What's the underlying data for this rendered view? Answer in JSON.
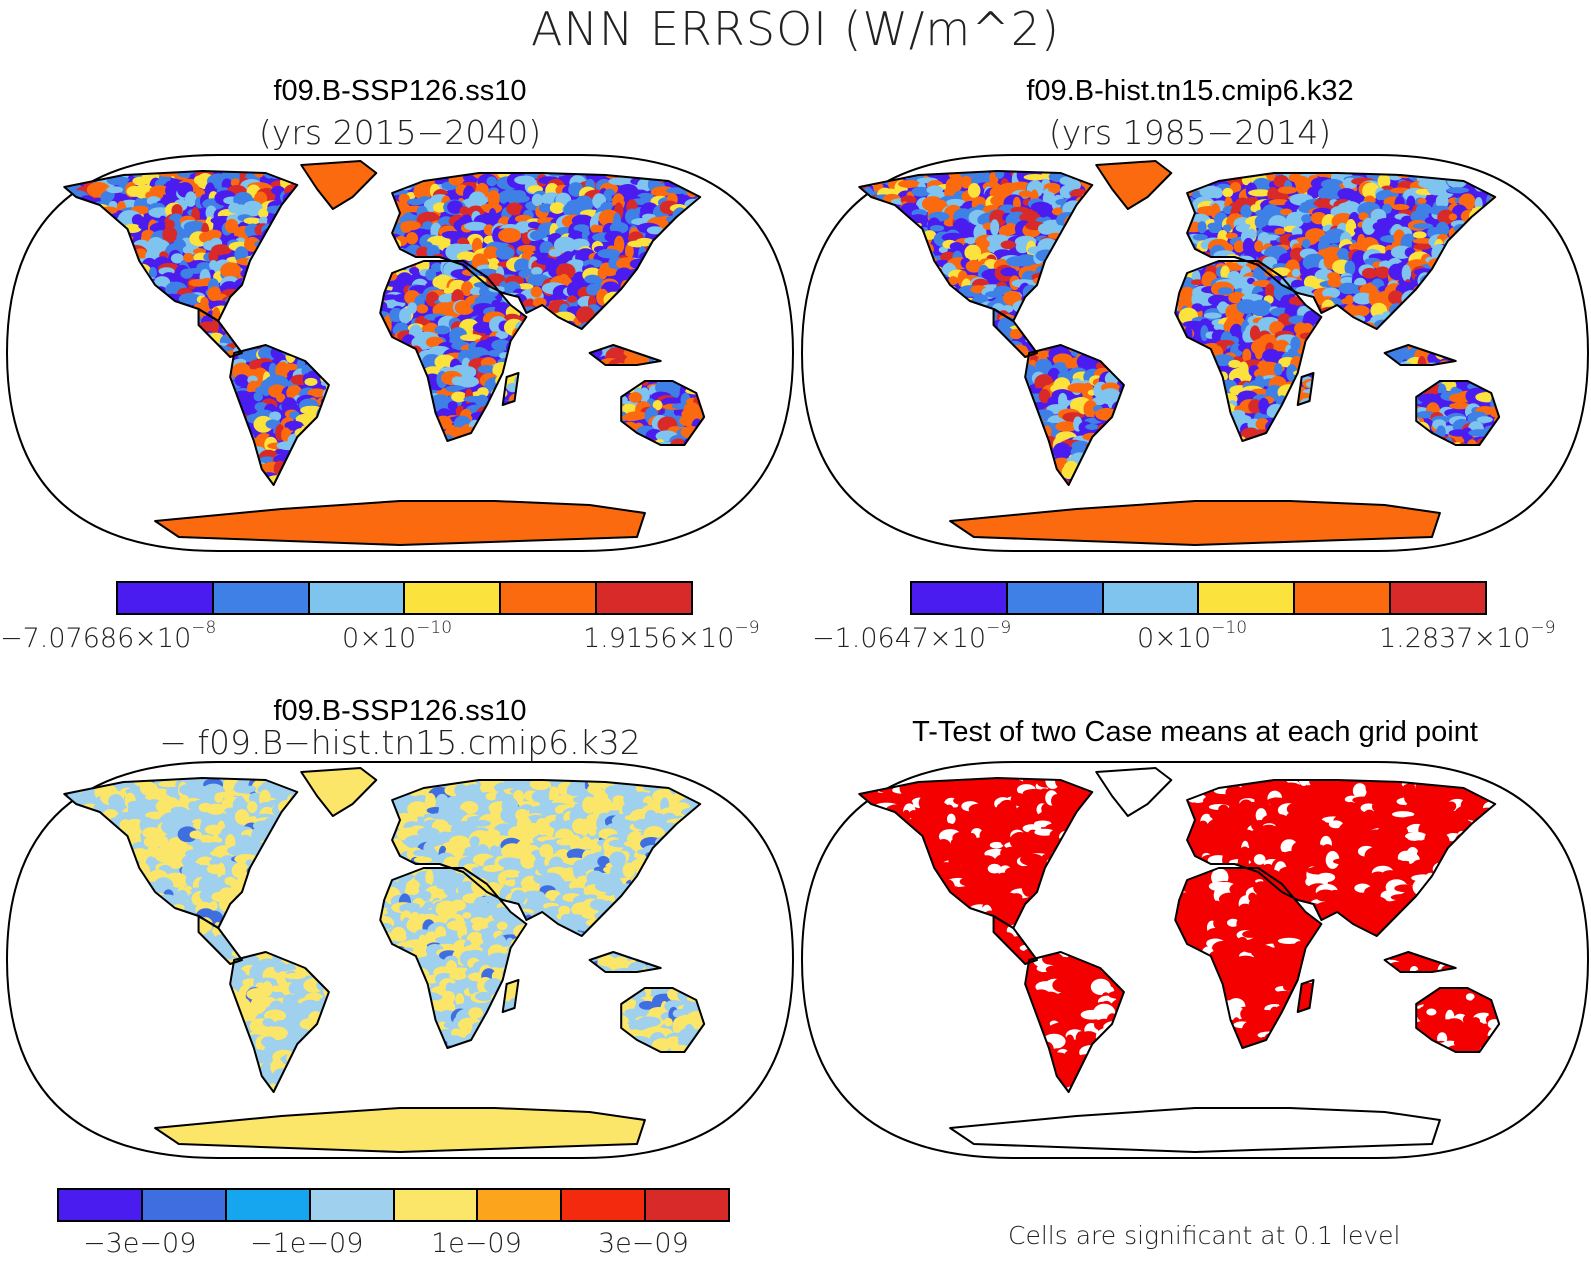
{
  "title": "ANN ERRSOI (W/m^2)",
  "panels": {
    "top_left": {
      "title": "f09.B-SSP126.ss10",
      "subtitle": "(yrs 2015−2040)",
      "colorbar": {
        "colors": [
          "#4b1cf0",
          "#3f80e6",
          "#7ec4ee",
          "#fbe23c",
          "#fb6a0e",
          "#d92a2a"
        ],
        "labels": [
          {
            "mant": "−7.07686×10",
            "exp": "−8"
          },
          {
            "mant": "0×10",
            "exp": "−10"
          },
          {
            "mant": "1.9156×10",
            "exp": "−9"
          }
        ]
      },
      "field_palette": [
        "#4b1cf0",
        "#3f80e6",
        "#7ec4ee",
        "#fbe23c",
        "#fb6a0e",
        "#d92a2a"
      ],
      "field_weights": [
        0.18,
        0.22,
        0.18,
        0.12,
        0.18,
        0.12
      ],
      "antarctica_color": "#fb6a0e",
      "greenland_color": "#fb6a0e"
    },
    "top_right": {
      "title": "f09.B-hist.tn15.cmip6.k32",
      "subtitle": "(yrs 1985−2014)",
      "colorbar": {
        "colors": [
          "#4b1cf0",
          "#3f80e6",
          "#7ec4ee",
          "#fbe23c",
          "#fb6a0e",
          "#d92a2a"
        ],
        "labels": [
          {
            "mant": "−1.0647×10",
            "exp": "−9"
          },
          {
            "mant": "0×10",
            "exp": "−10"
          },
          {
            "mant": "1.2837×10",
            "exp": "−9"
          }
        ]
      },
      "field_palette": [
        "#4b1cf0",
        "#3f80e6",
        "#7ec4ee",
        "#fbe23c",
        "#fb6a0e",
        "#d92a2a"
      ],
      "field_weights": [
        0.12,
        0.25,
        0.2,
        0.1,
        0.23,
        0.1
      ],
      "antarctica_color": "#fb6a0e",
      "greenland_color": "#fb6a0e"
    },
    "bottom_left": {
      "title": "f09.B-SSP126.ss10",
      "subtitle": "− f09.B−hist.tn15.cmip6.k32",
      "colorbar": {
        "colors": [
          "#4b1cf0",
          "#3f6ee0",
          "#16a6f0",
          "#9fd0ee",
          "#fbe66a",
          "#fba41c",
          "#f42a0e",
          "#d92a2a"
        ],
        "labels": [
          "−3e−09",
          "−1e−09",
          "1e−09",
          "3e−09"
        ]
      },
      "field_palette": [
        "#9fd0ee",
        "#fbe66a",
        "#3f6ee0"
      ],
      "field_weights": [
        0.48,
        0.48,
        0.04
      ],
      "antarctica_color": "#fbe66a",
      "greenland_color": "#fbe66a"
    },
    "bottom_right": {
      "title": "T-Test of two Case means at each grid point",
      "note": "Cells are significant at 0.1 level",
      "field_palette": [
        "#f50000",
        "#ffffff"
      ],
      "field_weights": [
        0.86,
        0.14
      ],
      "antarctica_color": "#ffffff",
      "greenland_color": "#ffffff"
    }
  }
}
